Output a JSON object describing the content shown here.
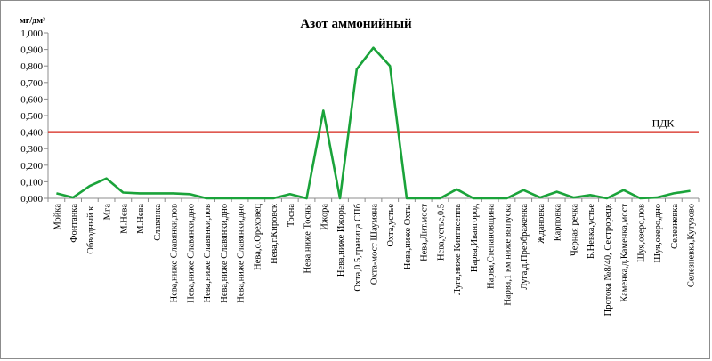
{
  "chart_data": {
    "type": "line",
    "title": "Азот аммонийный",
    "ylabel": "мг/дм³",
    "ylim": [
      0,
      1.0
    ],
    "yticks": [
      "0,000",
      "0,100",
      "0,200",
      "0,300",
      "0,400",
      "0,500",
      "0,600",
      "0,700",
      "0,800",
      "0,900",
      "1,000"
    ],
    "grid": false,
    "categories": [
      "Мойка",
      "Фонтанка",
      "Обводный к.",
      "Мга",
      "М.Нева",
      "М.Нева",
      "Славянка",
      "Нева,ниже Славянки,пов",
      "Нева,ниже Славянки,дно",
      "Нева,ниже Славянки,пов",
      "Нева,ниже Славянки,дно",
      "Нева,ниже Славянки,дно",
      "Нева,о.Ореховец",
      "Нева,г.Кировск",
      "Тосна",
      "Нева,ниже Тосны",
      "Ижора",
      "Нева,ниже Ижоры",
      "Охта,0.5,граница СПб",
      "Охта-мост Шаумяна",
      "Охта,устье",
      "Нева,ниже Охты",
      "Нева,Лит.мост",
      "Нева,устье,0.5",
      "Луга,ниже Кингисеппа",
      "Нарва,Ивангород",
      "Нарва,Степановщина",
      "Нарва,1 км ниже выпуска",
      "Луга,д.Преображенка",
      "Ждановка",
      "Карповка",
      "Черная речка",
      "Б.Невка,устье",
      "Протока №8/40, Сестрорецк",
      "Каменка,д.Каменка,мост",
      "Шуя,озеро,пов",
      "Шуя,озеро,дно",
      "Селезневка",
      "Селезневка,Кутузово"
    ],
    "series": [
      {
        "color": "#1aa33a",
        "values": [
          0.03,
          0.005,
          0.075,
          0.12,
          0.035,
          0.03,
          0.03,
          0.03,
          0.025,
          0.0,
          0.0,
          0.0,
          0.0,
          0.0,
          0.025,
          0.0,
          0.53,
          0.0,
          0.78,
          0.91,
          0.8,
          0.0,
          0.0,
          0.0,
          0.055,
          0.0,
          0.0,
          0.0,
          0.05,
          0.005,
          0.04,
          0.005,
          0.02,
          0.0,
          0.05,
          0.0,
          0.005,
          0.03,
          0.045
        ]
      }
    ],
    "reference_line": {
      "label": "ПДК",
      "value": 0.4,
      "color": "#d62418"
    }
  }
}
